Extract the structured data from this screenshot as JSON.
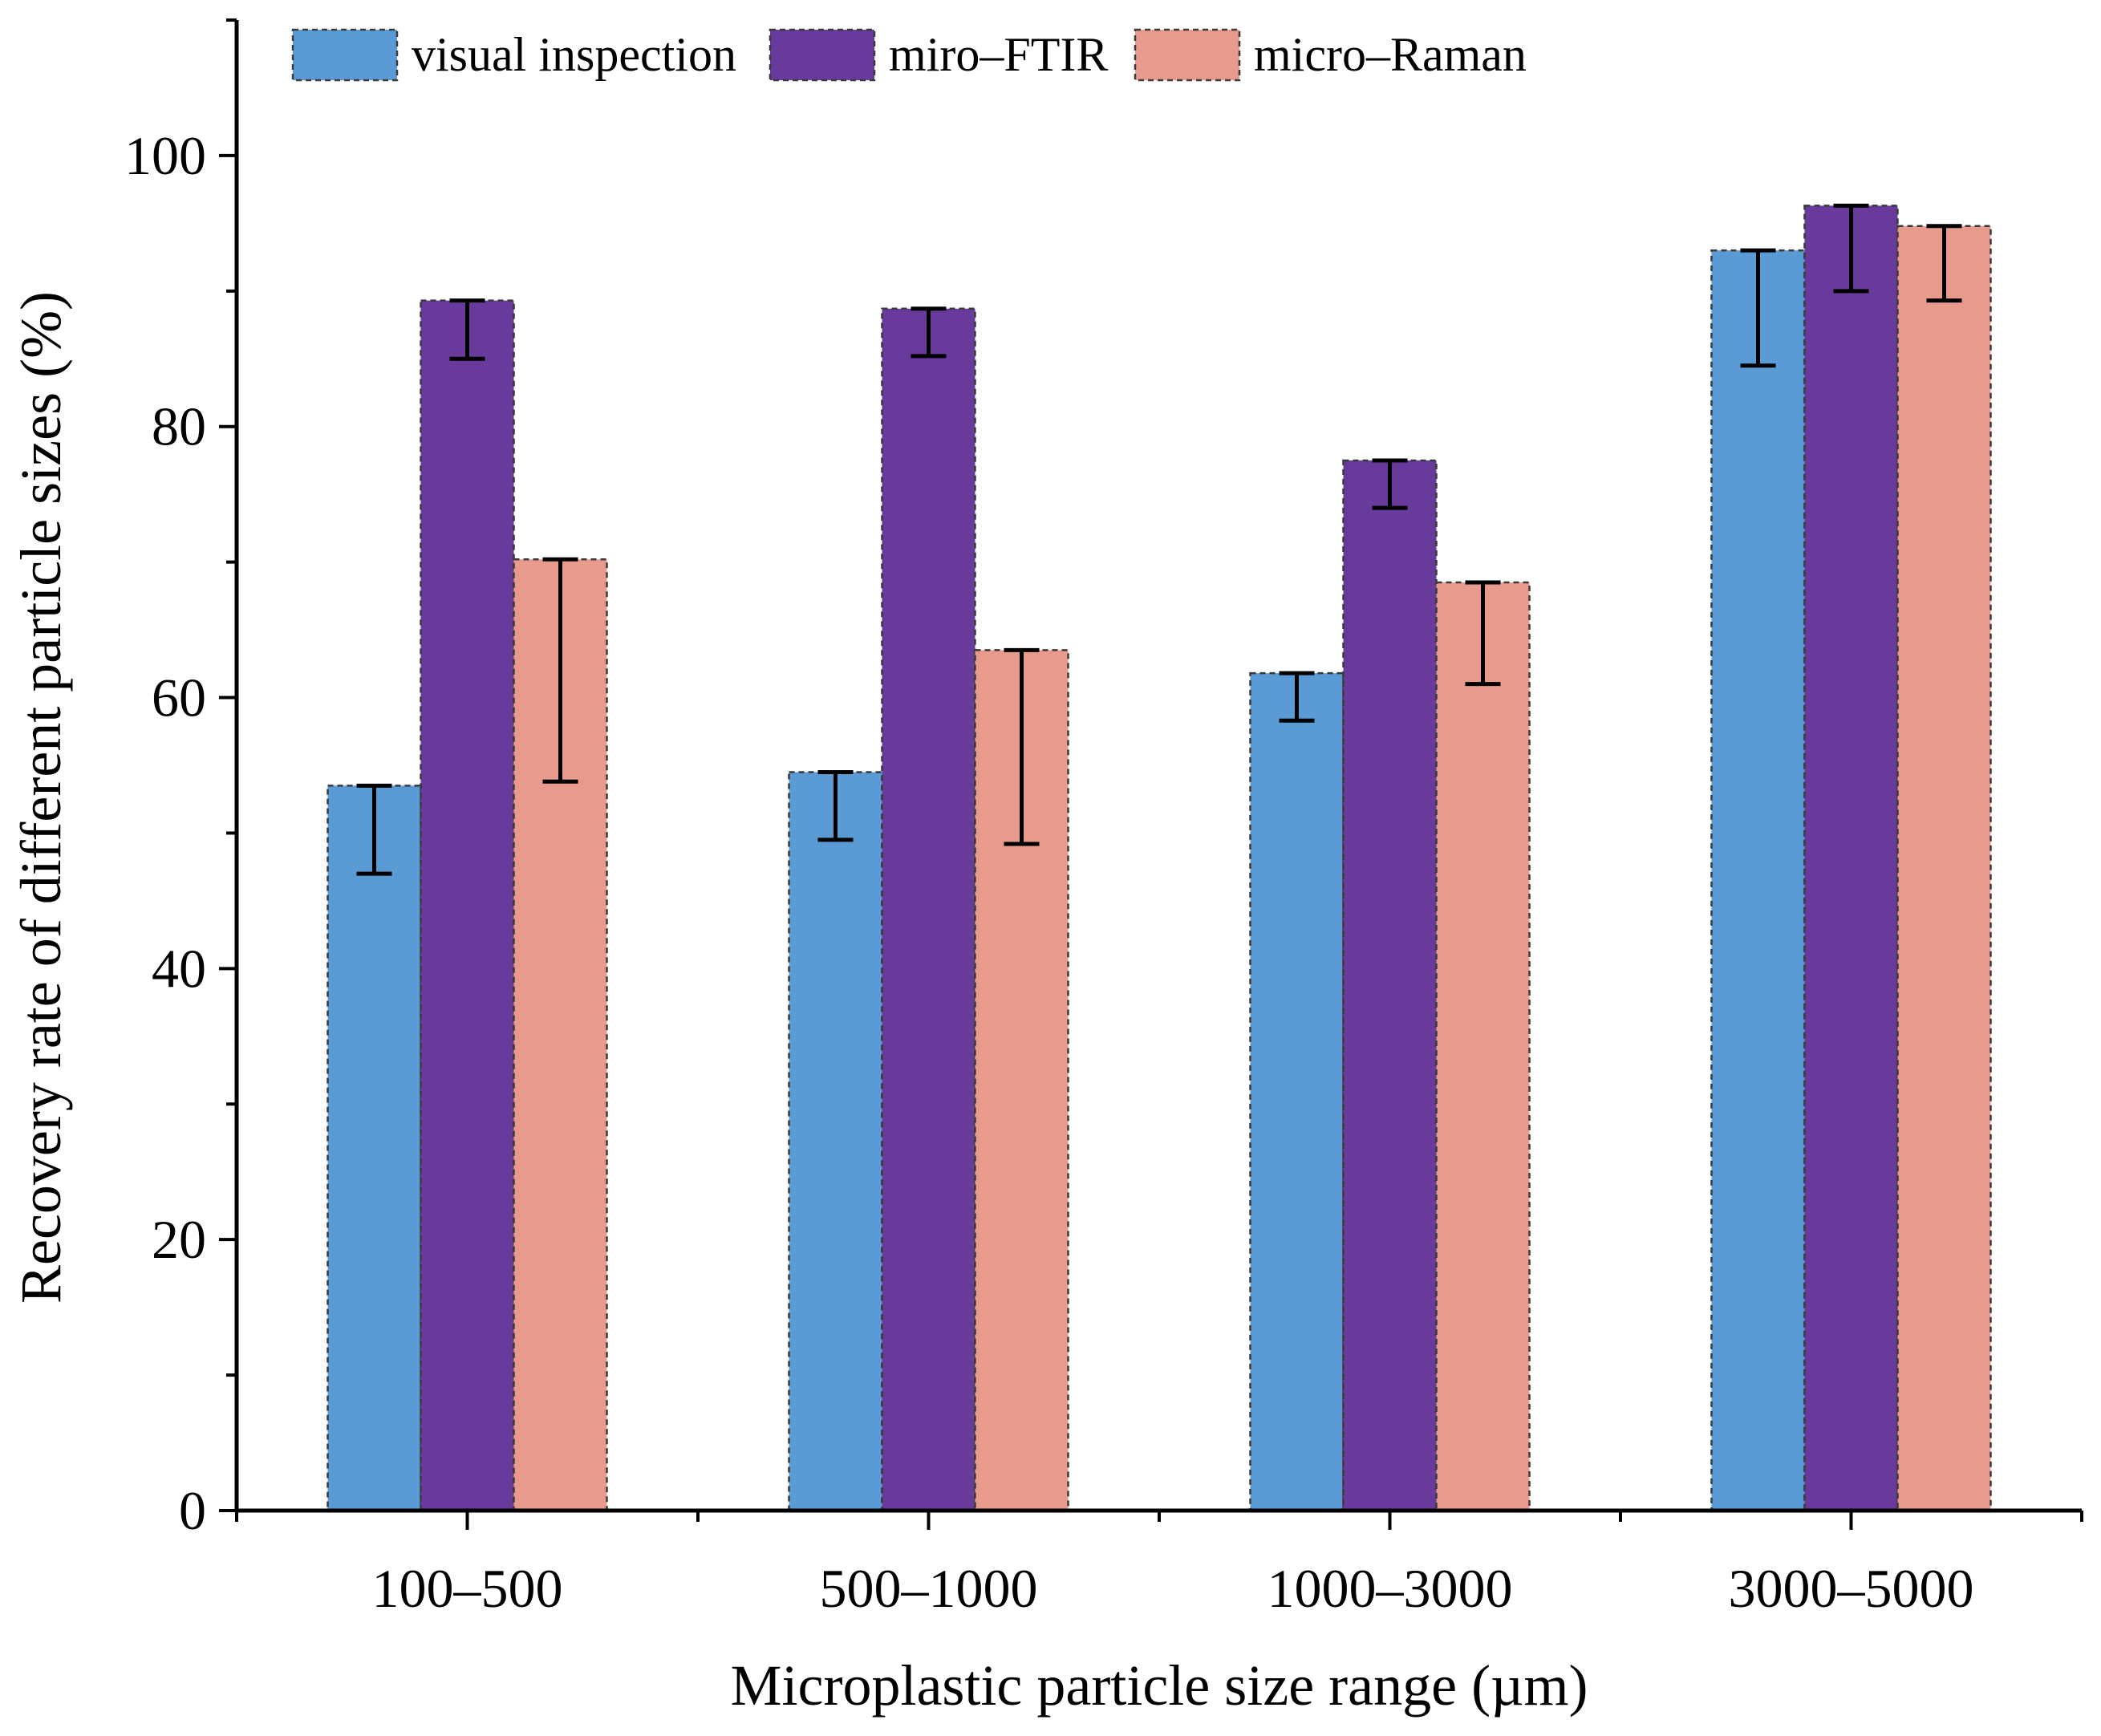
{
  "chart_data": {
    "type": "bar",
    "title": "",
    "xlabel": "Microplastic particle size range (µm)",
    "ylabel": "Recovery rate of different particle sizes (%)",
    "ylim": [
      0,
      110
    ],
    "yticks": [
      0,
      20,
      40,
      60,
      80,
      100
    ],
    "categories": [
      "100–500",
      "500–1000",
      "1000–3000",
      "3000–5000"
    ],
    "grid": false,
    "legend_position": "top",
    "series": [
      {
        "name": "visual inspection",
        "color": "#5b9bd5",
        "values": [
          53.5,
          54.5,
          61.8,
          93.0
        ],
        "err_low": [
          47.0,
          49.5,
          58.3,
          84.5
        ],
        "err_high": [
          53.5,
          54.5,
          61.8,
          93.0
        ]
      },
      {
        "name": "miro–FTIR",
        "color": "#673a9b",
        "values": [
          89.3,
          88.7,
          77.5,
          96.3
        ],
        "err_low": [
          85.0,
          85.2,
          74.0,
          90.0
        ],
        "err_high": [
          89.3,
          88.7,
          77.5,
          96.3
        ]
      },
      {
        "name": "micro–Raman",
        "color": "#e89a8d",
        "values": [
          70.2,
          63.5,
          68.5,
          94.8
        ],
        "err_low": [
          53.8,
          49.2,
          61.0,
          89.3
        ],
        "err_high": [
          70.2,
          63.5,
          68.5,
          94.8
        ]
      }
    ]
  }
}
